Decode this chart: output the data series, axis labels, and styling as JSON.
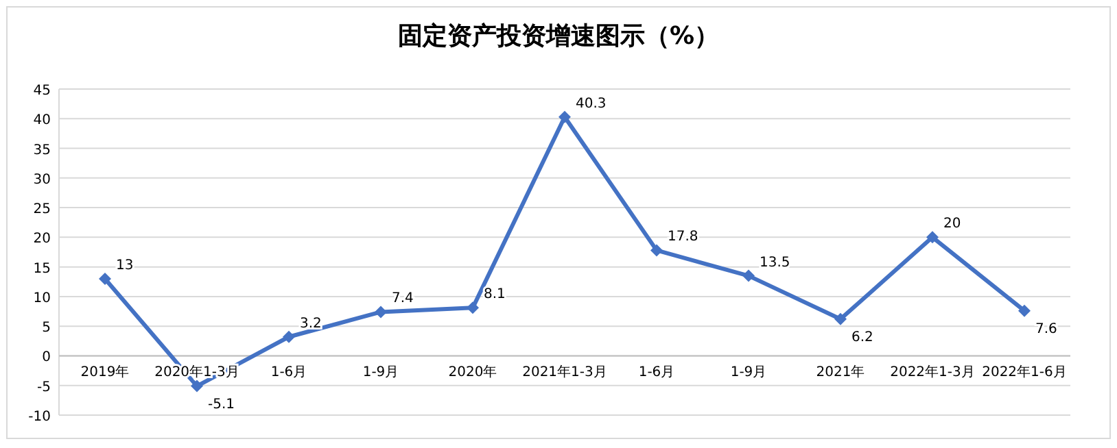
{
  "chart_data": {
    "type": "line",
    "title": "固定资产投资增速图示（%）",
    "categories": [
      "2019年",
      "2020年1-3月",
      "1-6月",
      "1-9月",
      "2020年",
      "2021年1-3月",
      "1-6月",
      "1-9月",
      "2021年",
      "2022年1-3月",
      "2022年1-6月"
    ],
    "series": [
      {
        "color": "#4472c4",
        "values": [
          13,
          -5.1,
          3.2,
          7.4,
          8.1,
          40.3,
          17.8,
          13.5,
          6.2,
          20,
          7.6
        ]
      }
    ],
    "ylim": [
      -10,
      45
    ],
    "yticks": [
      -10,
      -5,
      0,
      5,
      10,
      15,
      20,
      25,
      30,
      35,
      40,
      45
    ],
    "grid": "y",
    "marker": "diamond",
    "line_style": "solid",
    "data_labels": true
  }
}
